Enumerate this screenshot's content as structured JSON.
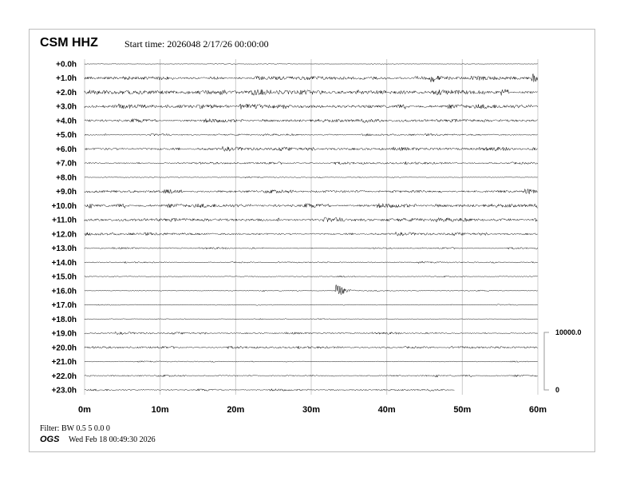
{
  "header": {
    "station": "CSM HHZ",
    "start_time": "Start time: 2026048  2/17/26 00:00:00"
  },
  "footer": {
    "filter": "Filter: BW 0.5 5 0.0 0",
    "agency": "OGS",
    "generated": "Wed Feb 18 00:49:30 2026"
  },
  "chart_data": {
    "type": "line",
    "subtype": "helicorder",
    "row_labels": [
      "+0.0h",
      "+1.0h",
      "+2.0h",
      "+3.0h",
      "+4.0h",
      "+5.0h",
      "+6.0h",
      "+7.0h",
      "+8.0h",
      "+9.0h",
      "+10.0h",
      "+11.0h",
      "+12.0h",
      "+13.0h",
      "+14.0h",
      "+15.0h",
      "+16.0h",
      "+17.0h",
      "+18.0h",
      "+19.0h",
      "+20.0h",
      "+21.0h",
      "+22.0h",
      "+23.0h"
    ],
    "x_ticks": [
      "0m",
      "10m",
      "20m",
      "30m",
      "40m",
      "50m",
      "60m"
    ],
    "xlim": [
      0,
      60
    ],
    "grid": true,
    "trace_color": "#000000",
    "grid_color": "#cccccc",
    "row_noise_level": [
      0.3,
      1.6,
      2.0,
      1.9,
      1.5,
      0.8,
      1.4,
      1.0,
      0.5,
      1.6,
      1.7,
      1.6,
      1.1,
      0.7,
      0.6,
      0.6,
      0.5,
      0.4,
      0.4,
      0.8,
      1.0,
      0.5,
      0.9,
      0.8
    ],
    "row_end_minute": [
      60,
      60,
      60,
      60,
      60,
      60,
      60,
      60,
      60,
      60,
      60,
      60,
      60,
      60,
      60,
      60,
      60,
      60,
      60,
      60,
      60,
      60,
      60,
      49
    ],
    "events": [
      {
        "row": "+16.0h",
        "minute": 33.5,
        "amplitude": 9
      },
      {
        "row": "+1.0h",
        "minute": 46,
        "amplitude": 4
      },
      {
        "row": "+1.0h",
        "minute": 59.5,
        "amplitude": 4
      },
      {
        "row": "+9.0h",
        "minute": 58.5,
        "amplitude": 3
      }
    ],
    "scale": {
      "top": "10000.0",
      "bottom": "0"
    }
  }
}
